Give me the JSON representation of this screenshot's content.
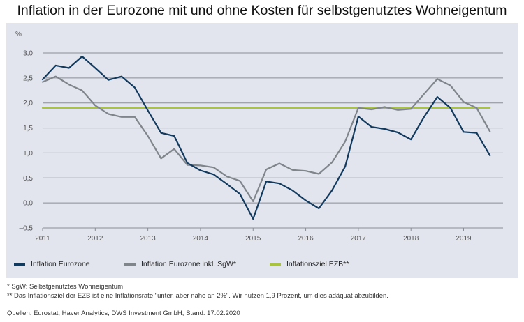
{
  "title": "Inflation in der Eurozone mit und ohne Kosten für selbstgenutztes Wohneigentum",
  "colors": {
    "panel_bg": "#e2e5ee",
    "series_navy": "#123a5e",
    "series_gray": "#7f858b",
    "series_green": "#a9c23f",
    "grid": "#8a8d94"
  },
  "legend": [
    {
      "label": "Inflation Eurozone",
      "color": "#123a5e"
    },
    {
      "label": "Inflation Eurozone inkl. SgW*",
      "color": "#7f858b"
    },
    {
      "label": "Inflationsziel EZB**",
      "color": "#a9c23f"
    }
  ],
  "notes": [
    "* SgW: Selbstgenutztes Wohneigentum",
    "** Das Inflationsziel der EZB ist eine Inflationsrate \"unter, aber nahe an 2%\". Wir nutzen 1,9 Prozent, um dies adäquat abzubilden."
  ],
  "source": "Quellen: Eurostat, Haver Analytics, DWS Investment GmbH; Stand: 17.02.2020",
  "chart_data": {
    "type": "line",
    "title": "Inflation in der Eurozone mit und ohne Kosten für selbstgenutztes Wohneigentum",
    "ylabel": "%",
    "ylim": [
      -0.5,
      3.0
    ],
    "xlim": [
      2011.0,
      2019.75
    ],
    "yticks": [
      -0.5,
      0.0,
      0.5,
      1.0,
      1.5,
      2.0,
      2.5,
      3.0
    ],
    "ytick_labels": [
      "–0,5",
      "0,0",
      "0,5",
      "1,0",
      "1,5",
      "2,0",
      "2,5",
      "3,0"
    ],
    "xticks": [
      2011,
      2012,
      2013,
      2014,
      2015,
      2016,
      2017,
      2018,
      2019
    ],
    "xtick_labels": [
      "2011",
      "2012",
      "2013",
      "2014",
      "2015",
      "2016",
      "2017",
      "2018",
      "2019"
    ],
    "grid": true,
    "legend_position": "bottom",
    "x": [
      2011.0,
      2011.25,
      2011.5,
      2011.75,
      2012.0,
      2012.25,
      2012.5,
      2012.75,
      2013.0,
      2013.25,
      2013.5,
      2013.75,
      2014.0,
      2014.25,
      2014.5,
      2014.75,
      2015.0,
      2015.25,
      2015.5,
      2015.75,
      2016.0,
      2016.25,
      2016.5,
      2016.75,
      2017.0,
      2017.25,
      2017.5,
      2017.75,
      2018.0,
      2018.25,
      2018.5,
      2018.75,
      2019.0,
      2019.25,
      2019.5
    ],
    "series": [
      {
        "name": "Inflation Eurozone",
        "color": "#123a5e",
        "values": [
          2.47,
          2.75,
          2.7,
          2.93,
          2.7,
          2.46,
          2.53,
          2.31,
          1.85,
          1.4,
          1.34,
          0.8,
          0.65,
          0.57,
          0.38,
          0.18,
          -0.32,
          0.43,
          0.39,
          0.25,
          0.05,
          -0.11,
          0.25,
          0.73,
          1.73,
          1.52,
          1.48,
          1.41,
          1.27,
          1.72,
          2.12,
          1.9,
          1.42,
          1.4,
          0.95
        ]
      },
      {
        "name": "Inflation Eurozone inkl. SgW*",
        "color": "#7f858b",
        "values": [
          2.42,
          2.53,
          2.37,
          2.25,
          1.95,
          1.78,
          1.72,
          1.72,
          1.34,
          0.89,
          1.08,
          0.76,
          0.75,
          0.71,
          0.53,
          0.44,
          0.03,
          0.67,
          0.79,
          0.66,
          0.64,
          0.58,
          0.81,
          1.23,
          1.9,
          1.87,
          1.92,
          1.86,
          1.88,
          2.18,
          2.48,
          2.35,
          2.02,
          1.9,
          1.43
        ]
      },
      {
        "name": "Inflationsziel EZB**",
        "color": "#a9c23f",
        "values": [
          1.9,
          1.9,
          1.9,
          1.9,
          1.9,
          1.9,
          1.9,
          1.9,
          1.9,
          1.9,
          1.9,
          1.9,
          1.9,
          1.9,
          1.9,
          1.9,
          1.9,
          1.9,
          1.9,
          1.9,
          1.9,
          1.9,
          1.9,
          1.9,
          1.9,
          1.9,
          1.9,
          1.9,
          1.9,
          1.9,
          1.9,
          1.9,
          1.9,
          1.9,
          1.9
        ]
      }
    ]
  }
}
